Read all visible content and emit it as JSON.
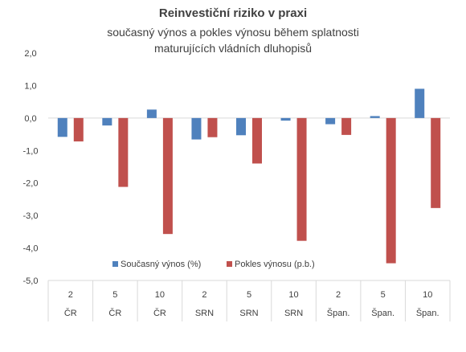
{
  "chart_data": {
    "type": "bar",
    "title": "Reinvestiční riziko v praxi",
    "subtitle": "současný výnos a pokles výnosu během splatnosti maturujících vládních dluhopisů",
    "ylim": [
      -5,
      2
    ],
    "yticks": [
      "2,0",
      "1,0",
      "0,0",
      "-1,0",
      "-2,0",
      "-3,0",
      "-4,0",
      "-5,0"
    ],
    "ytick_values": [
      2,
      1,
      0,
      -1,
      -2,
      -3,
      -4,
      -5
    ],
    "categories": [
      {
        "maturity": "2",
        "country": "ČR"
      },
      {
        "maturity": "5",
        "country": "ČR"
      },
      {
        "maturity": "10",
        "country": "ČR"
      },
      {
        "maturity": "2",
        "country": "SRN"
      },
      {
        "maturity": "5",
        "country": "SRN"
      },
      {
        "maturity": "10",
        "country": "SRN"
      },
      {
        "maturity": "2",
        "country": "Špan."
      },
      {
        "maturity": "5",
        "country": "Špan."
      },
      {
        "maturity": "10",
        "country": "Špan."
      }
    ],
    "series": [
      {
        "name": "Současný výnos (%)",
        "color": "#4F81BD",
        "values": [
          -0.58,
          -0.23,
          0.26,
          -0.66,
          -0.53,
          -0.08,
          -0.19,
          0.06,
          0.9
        ]
      },
      {
        "name": "Pokles výnosu (p.b.)",
        "color": "#C0504D",
        "values": [
          -0.72,
          -2.12,
          -3.57,
          -0.59,
          -1.4,
          -3.78,
          -0.52,
          -4.47,
          -2.77
        ]
      }
    ],
    "legend": "inside-bottom-left",
    "grid": false
  }
}
